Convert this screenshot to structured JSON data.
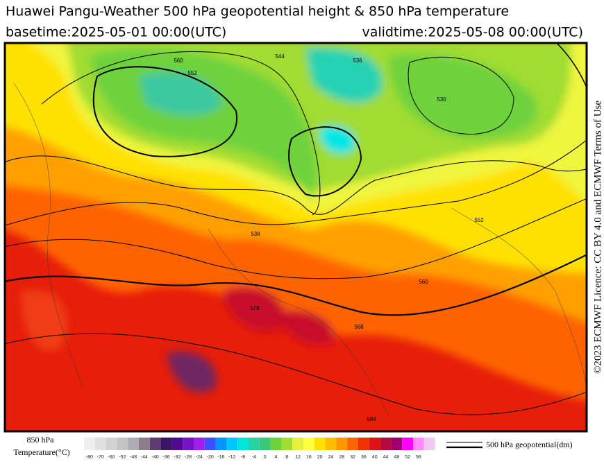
{
  "header": {
    "title": "Huawei Pangu-Weather 500 hPa geopotential height & 850 hPa temperature",
    "basetime": "basetime:2025-05-01 00:00(UTC)",
    "validtime": "validtime:2025-05-08 00:00(UTC)"
  },
  "side_text": "©2023 ECMWF Licence: CC BY 4.0 and ECMWF Terms of Use",
  "map": {
    "contour_labels": [
      560,
      552,
      544,
      536,
      530,
      538,
      552,
      560,
      568,
      576,
      584
    ]
  },
  "legend": {
    "temperature_label": [
      "850 hPa",
      "Temperature(°C)"
    ],
    "geopotential_label": "500 hPa geopotential(dm)",
    "ticks": [
      -80,
      -70,
      -60,
      -52,
      -48,
      -44,
      -40,
      -36,
      -32,
      -28,
      -24,
      -20,
      -16,
      -12,
      -8,
      -4,
      0,
      4,
      8,
      12,
      16,
      20,
      24,
      28,
      32,
      36,
      40,
      44,
      48,
      52,
      56
    ],
    "colors": [
      "#eeeeee",
      "#e0e0e0",
      "#d2d2d2",
      "#c4c4c4",
      "#b0aab4",
      "#8c7c8c",
      "#5a3c6e",
      "#3c1464",
      "#500a8c",
      "#7814c8",
      "#a01ee6",
      "#3c50ff",
      "#0096ff",
      "#00c8ff",
      "#00e6dc",
      "#28d2a0",
      "#3cc878",
      "#6ed23c",
      "#a0dc32",
      "#e6f03c",
      "#ffff3c",
      "#ffe100",
      "#ffbe00",
      "#ff9600",
      "#ff6400",
      "#f03200",
      "#dc1414",
      "#b40a3c",
      "#a0006e",
      "#ff00ff",
      "#ff8cff",
      "#f0c8f0"
    ]
  }
}
